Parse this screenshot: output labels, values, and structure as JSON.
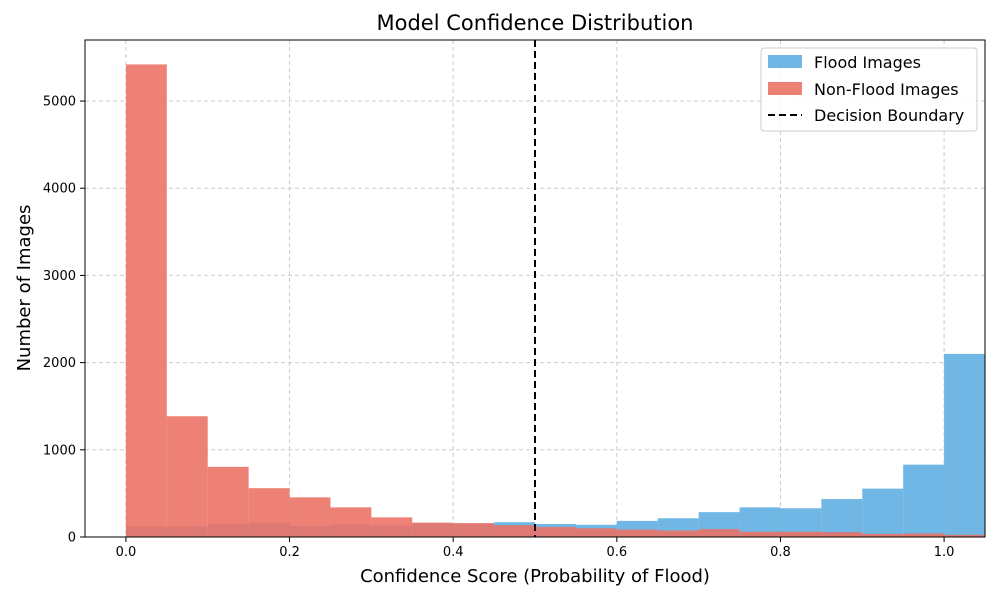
{
  "chart_data": {
    "type": "bar",
    "title": "Model Confidence Distribution",
    "xlabel": "Confidence Score (Probability of Flood)",
    "ylabel": "Number of Images",
    "xlim": [
      -0.05,
      1.05
    ],
    "ylim": [
      0,
      5700
    ],
    "xticks": [
      0.0,
      0.2,
      0.4,
      0.6,
      0.8,
      1.0
    ],
    "xtick_labels": [
      "0.0",
      "0.2",
      "0.4",
      "0.6",
      "0.8",
      "1.0"
    ],
    "yticks": [
      0,
      1000,
      2000,
      3000,
      4000,
      5000
    ],
    "ytick_labels": [
      "0",
      "1000",
      "2000",
      "3000",
      "4000",
      "5000"
    ],
    "grid": true,
    "legend_position": "top-right",
    "bin_edges": [
      0.0,
      0.05,
      0.1,
      0.15,
      0.2,
      0.25,
      0.3,
      0.35,
      0.4,
      0.45,
      0.5,
      0.55,
      0.6,
      0.65,
      0.7,
      0.75,
      0.8,
      0.85,
      0.9,
      0.95,
      1.0
    ],
    "series": [
      {
        "name": "Flood Images",
        "color": "#5DADE2",
        "values": [
          120,
          120,
          150,
          165,
          125,
          145,
          130,
          155,
          150,
          170,
          150,
          140,
          185,
          215,
          285,
          340,
          330,
          435,
          555,
          830,
          2100
        ]
      },
      {
        "name": "Non-Flood Images",
        "color": "#EC7063",
        "values": [
          5420,
          1385,
          805,
          560,
          455,
          340,
          225,
          165,
          160,
          135,
          115,
          100,
          85,
          75,
          90,
          60,
          60,
          55,
          35,
          40,
          25
        ]
      }
    ],
    "decision_boundary": {
      "name": "Decision Boundary",
      "x": 0.5,
      "color": "#000000"
    }
  }
}
